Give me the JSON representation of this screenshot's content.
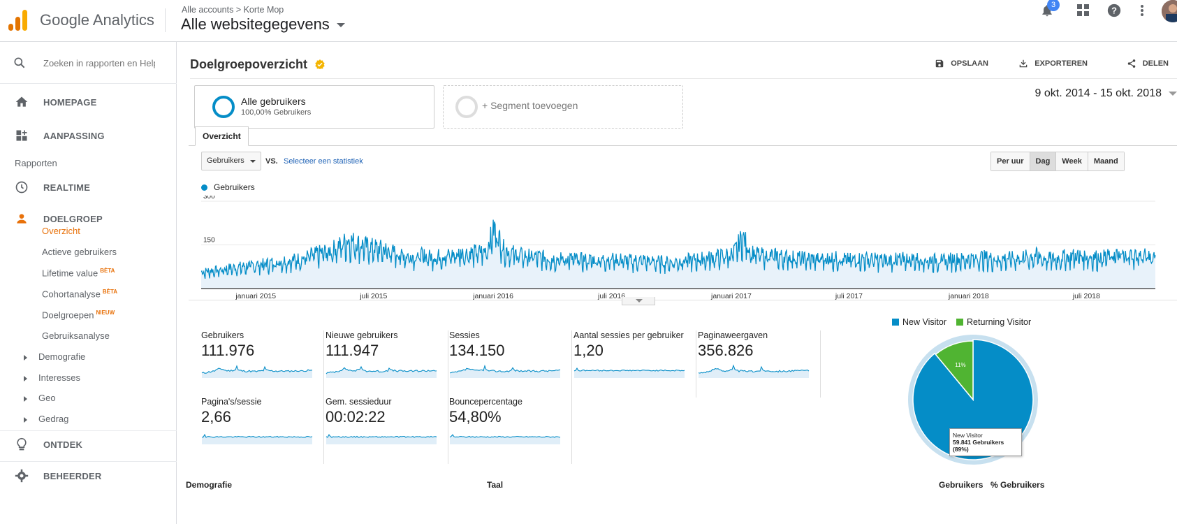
{
  "app": {
    "name": "Google Analytics"
  },
  "header": {
    "breadcrumb": "Alle accounts > Korte Mop",
    "property": "Alle websitegegevens",
    "notifications_count": "3",
    "colors": {
      "orange": "#f9ab00",
      "orange_dark": "#e37400"
    }
  },
  "sidebar": {
    "search_placeholder": "Zoeken in rapporten en Help",
    "home": "HOMEPAGE",
    "customization": "AANPASSING",
    "reports_section": "Rapporten",
    "realtime": "REALTIME",
    "audience": "DOELGROEP",
    "audience_items": [
      {
        "label": "Overzicht",
        "badge": ""
      },
      {
        "label": "Actieve gebruikers",
        "badge": ""
      },
      {
        "label": "Lifetime value",
        "badge": "BÈTA"
      },
      {
        "label": "Cohortanalyse",
        "badge": "BÈTA"
      },
      {
        "label": "Doelgroepen",
        "badge": "NIEUW"
      },
      {
        "label": "Gebruiksanalyse",
        "badge": ""
      }
    ],
    "tree_items": [
      "Demografie",
      "Interesses",
      "Geo",
      "Gedrag"
    ],
    "discover": "ONTDEK",
    "admin": "BEHEERDER"
  },
  "page": {
    "title": "Doelgroepoverzicht",
    "actions": {
      "save": "OPSLAAN",
      "export": "EXPORTEREN",
      "share": "DELEN"
    },
    "segments": {
      "active_name": "Alle gebruikers",
      "active_pct": "100,00% Gebruikers",
      "add": "+ Segment toevoegen"
    },
    "date_range": "9 okt. 2014 - 15 okt. 2018",
    "tab": "Overzicht",
    "metric_select": "Gebruikers",
    "vs": "VS.",
    "vs_link": "Selecteer een statistiek",
    "granularity": [
      "Per uur",
      "Dag",
      "Week",
      "Maand"
    ],
    "granularity_selected": "Dag"
  },
  "chart_data": {
    "type": "line",
    "series": [
      {
        "name": "Gebruikers",
        "color": "#058dc7"
      }
    ],
    "y_ticks": [
      "300",
      "150"
    ],
    "ylim": [
      0,
      300
    ],
    "x_tick_labels": [
      "januari 2015",
      "juli 2015",
      "januari 2016",
      "juli 2016",
      "januari 2017",
      "juli 2017",
      "januari 2018",
      "juli 2018"
    ],
    "x_range": [
      "2014-10-09",
      "2018-10-15"
    ],
    "approx_weekly_values": [
      55,
      60,
      62,
      68,
      72,
      75,
      80,
      82,
      88,
      92,
      95,
      100,
      110,
      118,
      125,
      140,
      160,
      150,
      140,
      135,
      130,
      120,
      112,
      108,
      110,
      105,
      108,
      110,
      115,
      118,
      120,
      125,
      200,
      130,
      118,
      110,
      108,
      105,
      100,
      98,
      100,
      98,
      95,
      96,
      98,
      100,
      95,
      93,
      95,
      92,
      90,
      88,
      92,
      95,
      98,
      100,
      105,
      110,
      115,
      170,
      120,
      112,
      110,
      108,
      105,
      102,
      100,
      98,
      100,
      102,
      98,
      95,
      100,
      98,
      96,
      95,
      97,
      100,
      98,
      96,
      95,
      95,
      98,
      97,
      100,
      105,
      100,
      98,
      100,
      102,
      105,
      110,
      100,
      98,
      105,
      108,
      110,
      105,
      104,
      108,
      110,
      112,
      110,
      108,
      110
    ],
    "grid": true
  },
  "kpis": [
    {
      "label": "Gebruikers",
      "value": "111.976"
    },
    {
      "label": "Nieuwe gebruikers",
      "value": "111.947"
    },
    {
      "label": "Sessies",
      "value": "134.150"
    },
    {
      "label": "Aantal sessies per gebruiker",
      "value": "1,20"
    },
    {
      "label": "Paginaweergaven",
      "value": "356.826"
    },
    {
      "label": "Pagina's/sessie",
      "value": "2,66"
    },
    {
      "label": "Gem. sessieduur",
      "value": "00:02:22"
    },
    {
      "label": "Bouncepercentage",
      "value": "54,80%"
    }
  ],
  "pie": {
    "type": "pie",
    "slices": [
      {
        "name": "New Visitor",
        "pct": 89,
        "color": "#058dc7"
      },
      {
        "name": "Returning Visitor",
        "pct": 11,
        "color": "#50b432"
      }
    ],
    "slice_label": "11%",
    "tooltip_title": "New Visitor",
    "tooltip_value": "59.841 Gebruikers (89%)"
  },
  "table": {
    "col1": "Demografie",
    "col2": "Taal",
    "col3": "Gebruikers",
    "col4": "% Gebruikers"
  }
}
